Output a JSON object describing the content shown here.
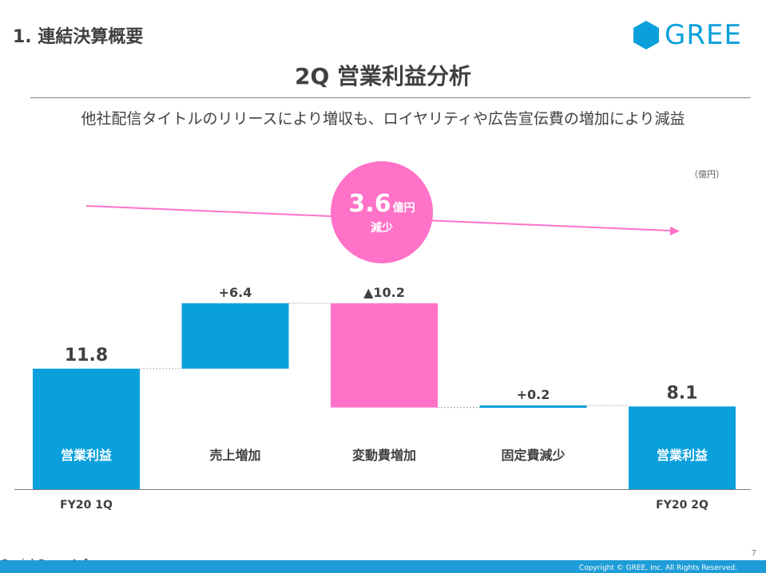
{
  "header": {
    "section_title": "1. 連結決算概要",
    "logo_text": "GREE",
    "main_title": "2Q 営業利益分析",
    "subtitle": "他社配信タイトルのリリースにより増収も、ロイヤリティや広告宣伝費の増加により減益"
  },
  "unit_label": "（億円）",
  "badge": {
    "value": "3.6",
    "unit": "億円",
    "text": "減少"
  },
  "chart_data": {
    "type": "waterfall",
    "unit": "億円",
    "ylim": [
      0,
      12.5
    ],
    "steps": [
      {
        "label": "営業利益",
        "kind": "total",
        "value": 11.8,
        "value_label": "11.8",
        "period": "FY20 1Q"
      },
      {
        "label": "売上増加",
        "kind": "increase",
        "value": 6.4,
        "value_label": "+6.4",
        "period": ""
      },
      {
        "label": "変動費増加",
        "kind": "decrease",
        "value": -10.2,
        "value_label": "▲10.2",
        "period": ""
      },
      {
        "label": "固定費減少",
        "kind": "increase",
        "value": 0.2,
        "value_label": "+0.2",
        "period": ""
      },
      {
        "label": "営業利益",
        "kind": "total",
        "value": 8.1,
        "value_label": "8.1",
        "period": "FY20 2Q"
      }
    ],
    "colors": {
      "increase": "#0aa0dc",
      "total": "#0aa0dc",
      "decrease": "#ff72c8"
    }
  },
  "footer": {
    "page_number": "7",
    "copyright": "Copyright © GREE, Inc. All Rights Reserved.",
    "watermark_part1": "Social Game ",
    "watermark_part2": "Info"
  }
}
